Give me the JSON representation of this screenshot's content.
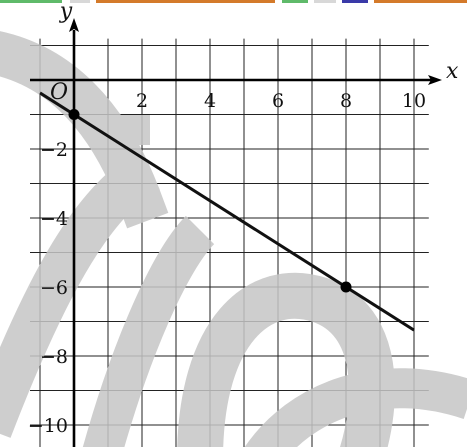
{
  "chart_data": {
    "type": "line",
    "title": "",
    "xlabel": "x",
    "ylabel": "y",
    "origin_label": "O",
    "xlim": [
      -1,
      10
    ],
    "ylim": [
      -10,
      1
    ],
    "xticks": [
      2,
      4,
      6,
      8,
      10
    ],
    "xtick_labels": [
      "2",
      "4",
      "6",
      "8",
      "10"
    ],
    "yticks": [
      -2,
      -4,
      -6,
      -8,
      -10
    ],
    "ytick_labels": [
      "−2",
      "−4",
      "−6",
      "−8",
      "−10"
    ],
    "grid": true,
    "grid_step": 1,
    "line": {
      "x": [
        -1,
        10
      ],
      "y": [
        -0.375,
        -7.25
      ],
      "color": "#111111"
    },
    "points": [
      {
        "x": 0,
        "y": -1
      },
      {
        "x": 8,
        "y": -6
      }
    ]
  },
  "decor": {
    "top_strip_colors": [
      "#5fba6a",
      "#d47a2a",
      "#3a3aa8",
      "#d8d8d8"
    ],
    "watermark_color": "#c6c6c6"
  }
}
